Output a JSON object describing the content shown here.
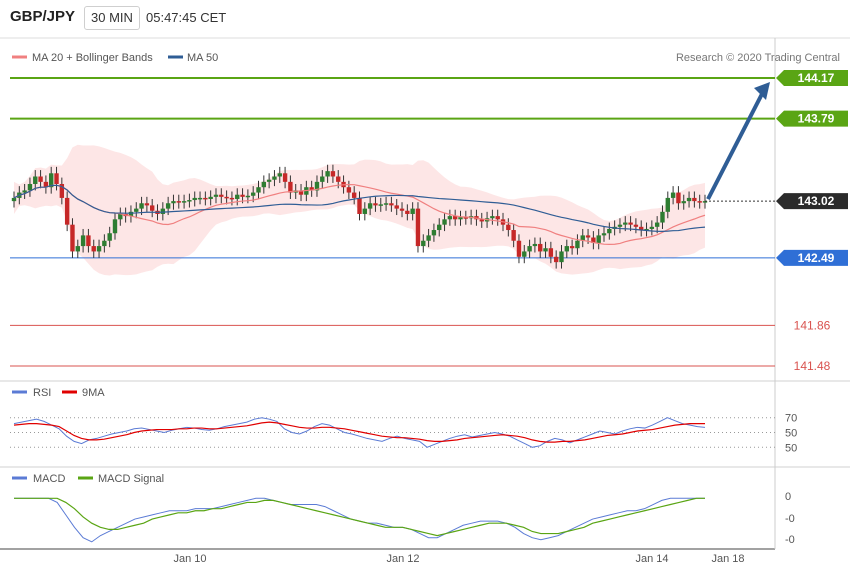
{
  "header": {
    "symbol": "GBP/JPY",
    "timeframe": "30 MIN",
    "time": "05:47:45 CET"
  },
  "chart_data": [
    {
      "type": "candlestick",
      "legend": [
        {
          "name": "MA 20 + Bollinger Bands",
          "color": "#f08080"
        },
        {
          "name": "MA 50",
          "color": "#2f5d95"
        }
      ],
      "attribution": "Research © 2020 Trading Central",
      "current_price": "143.02",
      "levels": [
        {
          "value": 144.17,
          "label": "144.17",
          "color": "#5aa514",
          "kind": "resistance"
        },
        {
          "value": 143.79,
          "label": "143.79",
          "color": "#5aa514",
          "kind": "resistance"
        },
        {
          "value": 142.49,
          "label": "142.49",
          "color": "#2f6fd6",
          "kind": "pivot"
        },
        {
          "value": 141.86,
          "label": "141.86",
          "color": "#d9534f",
          "kind": "support"
        },
        {
          "value": 141.48,
          "label": "141.48",
          "color": "#d9534f",
          "kind": "support"
        }
      ],
      "arrow_color": "#2f5d95",
      "up_color": "#2e7d32",
      "down_color": "#c62828",
      "close": [
        143.05,
        143.1,
        143.12,
        143.18,
        143.25,
        143.2,
        143.15,
        143.28,
        143.18,
        143.05,
        142.8,
        142.55,
        142.6,
        142.7,
        142.6,
        142.55,
        142.6,
        142.65,
        142.72,
        142.85,
        142.9,
        142.88,
        142.92,
        142.95,
        143.0,
        142.98,
        142.93,
        142.9,
        142.95,
        143.0,
        143.02,
        143.01,
        143.02,
        143.03,
        143.05,
        143.05,
        143.04,
        143.06,
        143.08,
        143.06,
        143.05,
        143.04,
        143.08,
        143.06,
        143.07,
        143.1,
        143.15,
        143.2,
        143.22,
        143.25,
        143.28,
        143.2,
        143.1,
        143.12,
        143.08,
        143.15,
        143.12,
        143.2,
        143.25,
        143.3,
        143.25,
        143.2,
        143.15,
        143.1,
        143.05,
        142.9,
        142.95,
        143.0,
        142.98,
        142.99,
        143.0,
        142.98,
        142.95,
        142.93,
        142.9,
        142.95,
        142.6,
        142.65,
        142.7,
        142.75,
        142.8,
        142.85,
        142.88,
        142.85,
        142.87,
        142.86,
        142.88,
        142.85,
        142.83,
        142.86,
        142.88,
        142.85,
        142.8,
        142.75,
        142.65,
        142.5,
        142.55,
        142.6,
        142.62,
        142.55,
        142.58,
        142.5,
        142.45,
        142.55,
        142.6,
        142.58,
        142.65,
        142.7,
        142.68,
        142.63,
        142.7,
        142.72,
        142.76,
        142.78,
        142.8,
        142.82,
        142.8,
        142.78,
        142.75,
        142.76,
        142.78,
        142.82,
        142.92,
        143.05,
        143.1,
        143.0,
        143.02,
        143.05,
        143.02,
        143.01,
        143.02
      ],
      "time_labels": [
        "Jan 10",
        "Jan 12",
        "Jan 14",
        "Jan 18"
      ]
    },
    {
      "type": "line",
      "legend": [
        {
          "name": "RSI",
          "color": "#5b7bd5"
        },
        {
          "name": "9MA",
          "color": "#e00000"
        }
      ],
      "y_ticks": [
        "70",
        "50",
        "30"
      ],
      "rsi": [
        62,
        64,
        66,
        68,
        65,
        60,
        55,
        45,
        38,
        35,
        40,
        42,
        45,
        48,
        50,
        52,
        55,
        56,
        54,
        52,
        50,
        53,
        55,
        57,
        56,
        54,
        53,
        55,
        58,
        60,
        62,
        64,
        68,
        70,
        68,
        65,
        55,
        50,
        48,
        52,
        58,
        62,
        60,
        55,
        50,
        48,
        45,
        42,
        40,
        38,
        42,
        45,
        42,
        40,
        38,
        30,
        34,
        38,
        42,
        45,
        47,
        44,
        46,
        48,
        50,
        48,
        45,
        40,
        35,
        30,
        32,
        38,
        42,
        40,
        36,
        40,
        44,
        48,
        52,
        50,
        48,
        52,
        55,
        57,
        56,
        60,
        65,
        70,
        66,
        62,
        60,
        58,
        57
      ],
      "ma9": [
        60,
        61,
        62,
        62,
        61,
        60,
        58,
        52,
        46,
        42,
        40,
        40,
        41,
        43,
        45,
        47,
        50,
        52,
        53,
        54,
        54,
        54,
        55,
        55,
        56,
        56,
        55,
        55,
        56,
        57,
        58,
        59,
        61,
        63,
        64,
        63,
        61,
        59,
        57,
        56,
        56,
        57,
        57,
        56,
        55,
        53,
        51,
        49,
        47,
        45,
        44,
        43,
        43,
        42,
        41,
        39,
        38,
        38,
        39,
        40,
        42,
        43,
        44,
        45,
        46,
        47,
        46,
        45,
        43,
        40,
        38,
        37,
        37,
        38,
        38,
        39,
        40,
        42,
        44,
        46,
        47,
        48,
        50,
        52,
        53,
        54,
        56,
        58,
        60,
        61,
        62,
        62,
        62
      ]
    },
    {
      "type": "line",
      "legend": [
        {
          "name": "MACD",
          "color": "#5b7bd5"
        },
        {
          "name": "MACD Signal",
          "color": "#5aa514"
        }
      ],
      "y_ticks": [
        "0",
        "-0",
        "-0"
      ],
      "macd": [
        0.0,
        0.0,
        0.0,
        0.0,
        0.0,
        -0.02,
        -0.08,
        -0.14,
        -0.19,
        -0.21,
        -0.18,
        -0.16,
        -0.14,
        -0.12,
        -0.1,
        -0.09,
        -0.08,
        -0.07,
        -0.06,
        -0.06,
        -0.06,
        -0.05,
        -0.05,
        -0.05,
        -0.04,
        -0.03,
        -0.02,
        -0.01,
        0.0,
        0.0,
        -0.01,
        -0.02,
        -0.03,
        -0.03,
        -0.03,
        -0.03,
        -0.04,
        -0.06,
        -0.08,
        -0.1,
        -0.11,
        -0.12,
        -0.12,
        -0.13,
        -0.14,
        -0.14,
        -0.15,
        -0.17,
        -0.19,
        -0.19,
        -0.17,
        -0.15,
        -0.13,
        -0.12,
        -0.11,
        -0.11,
        -0.11,
        -0.12,
        -0.14,
        -0.17,
        -0.19,
        -0.2,
        -0.19,
        -0.18,
        -0.16,
        -0.14,
        -0.12,
        -0.1,
        -0.09,
        -0.08,
        -0.07,
        -0.06,
        -0.06,
        -0.05,
        -0.03,
        -0.01,
        0.0,
        0.0,
        0.0,
        0.0,
        0.0
      ],
      "signal": [
        0.0,
        0.0,
        0.0,
        0.0,
        0.0,
        0.0,
        -0.02,
        -0.05,
        -0.09,
        -0.12,
        -0.14,
        -0.15,
        -0.15,
        -0.14,
        -0.13,
        -0.12,
        -0.1,
        -0.09,
        -0.08,
        -0.07,
        -0.07,
        -0.06,
        -0.06,
        -0.05,
        -0.05,
        -0.04,
        -0.03,
        -0.02,
        -0.02,
        -0.01,
        -0.01,
        -0.02,
        -0.03,
        -0.04,
        -0.05,
        -0.06,
        -0.07,
        -0.08,
        -0.09,
        -0.1,
        -0.11,
        -0.12,
        -0.13,
        -0.14,
        -0.14,
        -0.14,
        -0.15,
        -0.16,
        -0.17,
        -0.18,
        -0.17,
        -0.16,
        -0.15,
        -0.14,
        -0.13,
        -0.12,
        -0.12,
        -0.12,
        -0.13,
        -0.14,
        -0.16,
        -0.17,
        -0.17,
        -0.17,
        -0.16,
        -0.15,
        -0.14,
        -0.12,
        -0.11,
        -0.1,
        -0.09,
        -0.08,
        -0.07,
        -0.06,
        -0.05,
        -0.04,
        -0.03,
        -0.02,
        -0.01,
        0.0,
        0.0
      ]
    }
  ]
}
